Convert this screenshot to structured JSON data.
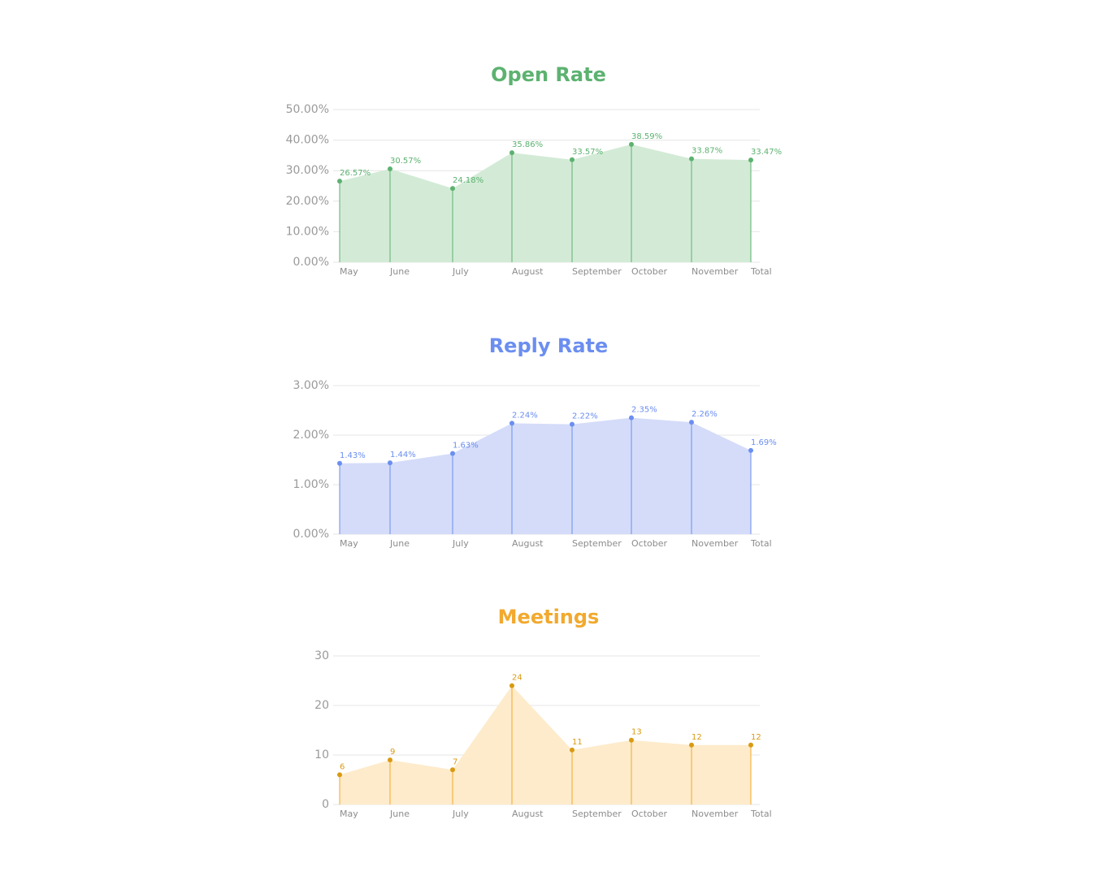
{
  "chart_data": [
    {
      "type": "area",
      "title": "Open Rate",
      "color": "#5cb270",
      "fill": "#d3ebd6",
      "categories": [
        "May",
        "June",
        "July",
        "August",
        "September",
        "October",
        "November",
        "Total"
      ],
      "values": [
        26.57,
        30.57,
        24.18,
        35.86,
        33.57,
        38.59,
        33.87,
        33.47
      ],
      "value_labels": [
        "26.57%",
        "30.57%",
        "24.18%",
        "35.86%",
        "33.57%",
        "38.59%",
        "33.87%",
        "33.47%"
      ],
      "yticks": [
        0,
        10,
        20,
        30,
        40,
        50
      ],
      "ytick_labels": [
        "0.00%",
        "10.00%",
        "20.00%",
        "30.00%",
        "40.00%",
        "50.00%"
      ],
      "ylim": [
        0,
        50
      ],
      "grid": true
    },
    {
      "type": "area",
      "title": "Reply Rate",
      "color": "#6b8ef0",
      "fill": "#d4dcf9",
      "categories": [
        "May",
        "June",
        "July",
        "August",
        "September",
        "October",
        "November",
        "Total"
      ],
      "values": [
        1.43,
        1.44,
        1.63,
        2.24,
        2.22,
        2.35,
        2.26,
        1.69
      ],
      "value_labels": [
        "1.43%",
        "1.44%",
        "1.63%",
        "2.24%",
        "2.22%",
        "2.35%",
        "2.26%",
        "1.69%"
      ],
      "yticks": [
        0,
        1,
        2,
        3
      ],
      "ytick_labels": [
        "0.00%",
        "1.00%",
        "2.00%",
        "3.00%"
      ],
      "ylim": [
        0,
        3
      ],
      "grid": true
    },
    {
      "type": "area",
      "title": "Meetings",
      "color": "#f2a92e",
      "fill": "#fdebcb",
      "point_color": "#d99a12",
      "categories": [
        "May",
        "June",
        "July",
        "August",
        "September",
        "October",
        "November",
        "Total"
      ],
      "values": [
        6,
        9,
        7,
        24,
        11,
        13,
        12,
        12
      ],
      "value_labels": [
        "6",
        "9",
        "7",
        "24",
        "11",
        "13",
        "12",
        "12"
      ],
      "yticks": [
        0,
        10,
        20,
        30
      ],
      "ytick_labels": [
        "0",
        "10",
        "20",
        "30"
      ],
      "ylim": [
        0,
        30
      ],
      "grid": true
    }
  ]
}
